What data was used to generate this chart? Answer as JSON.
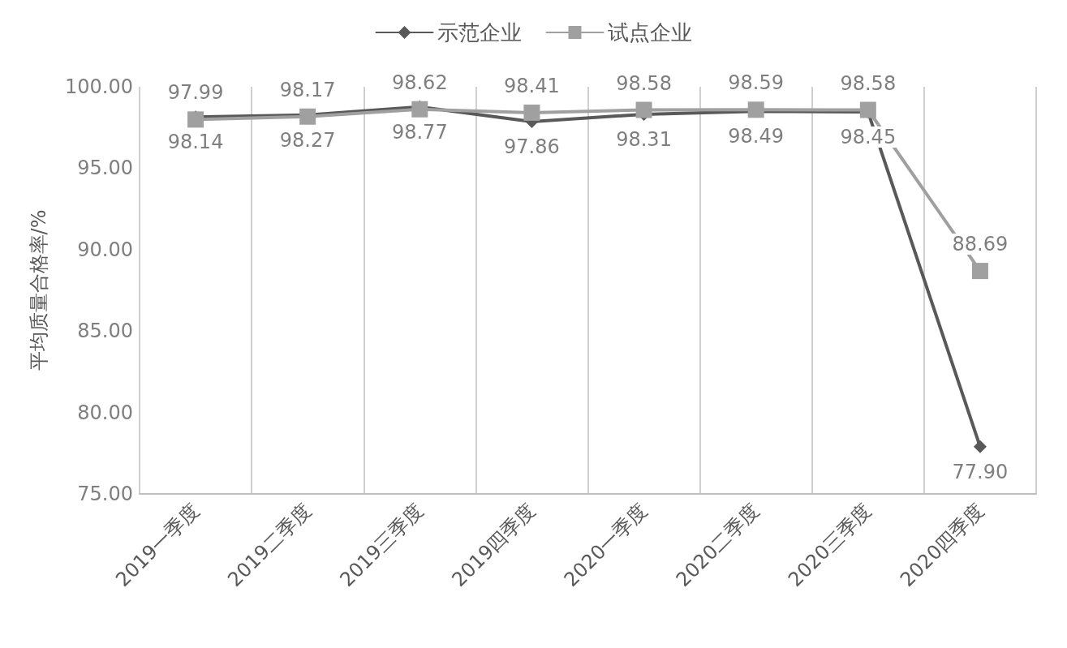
{
  "chart_data": {
    "type": "line",
    "ylabel": "平均质量合格率/%",
    "categories": [
      "2019一季度",
      "2019二季度",
      "2019三季度",
      "2019四季度",
      "2020一季度",
      "2020二季度",
      "2020三季度",
      "2020四季度"
    ],
    "series": [
      {
        "name": "示范企业",
        "color": "#595959",
        "marker": "diamond",
        "values": [
          98.14,
          98.27,
          98.77,
          97.86,
          98.31,
          98.49,
          98.45,
          77.9
        ],
        "value_labels": [
          "98.14",
          "98.27",
          "98.77",
          "97.86",
          "98.31",
          "98.49",
          "98.45",
          "77.90"
        ]
      },
      {
        "name": "试点企业",
        "color": "#a0a0a0",
        "marker": "square",
        "values": [
          97.99,
          98.17,
          98.62,
          98.41,
          98.58,
          98.59,
          98.58,
          88.69
        ],
        "value_labels": [
          "97.99",
          "98.17",
          "98.62",
          "98.41",
          "98.58",
          "98.59",
          "98.58",
          "88.69"
        ]
      }
    ],
    "ylim": [
      75,
      100
    ],
    "yticks": [
      {
        "value": 75,
        "label": "75.00"
      },
      {
        "value": 80,
        "label": "80.00"
      },
      {
        "value": 85,
        "label": "85.00"
      },
      {
        "value": 90,
        "label": "90.00"
      },
      {
        "value": 95,
        "label": "95.00"
      },
      {
        "value": 100,
        "label": "100.00"
      }
    ],
    "grid": "x",
    "legend": "top",
    "line_style": "solid"
  }
}
